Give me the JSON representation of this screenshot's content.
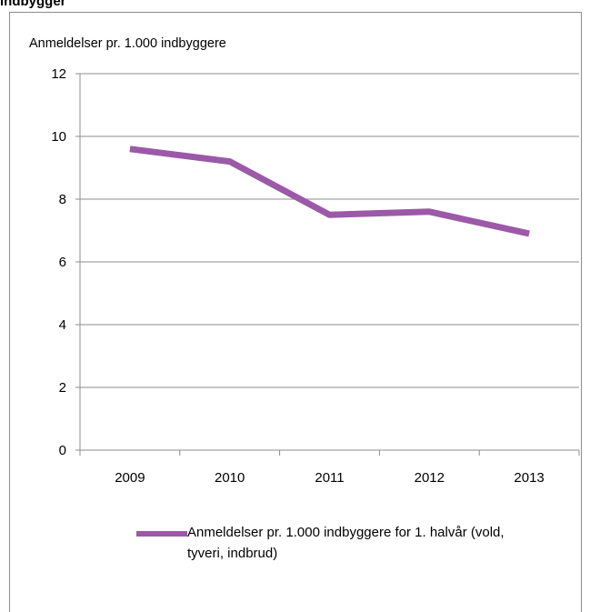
{
  "heading_fragment": "indbygger",
  "chart_data": {
    "type": "line",
    "ylabel": "Anmeldelser pr. 1.000 indbyggere",
    "categories": [
      "2009",
      "2010",
      "2011",
      "2012",
      "2013"
    ],
    "yticks": [
      "0",
      "2",
      "4",
      "6",
      "8",
      "10",
      "12"
    ],
    "ylim": [
      0,
      12
    ],
    "grid": true,
    "legend_position": "bottom",
    "series": [
      {
        "name": "Anmeldelser pr. 1.000 indbyggere for 1. halvår (vold, tyveri, indbrud)",
        "values": [
          9.6,
          9.2,
          7.5,
          7.6,
          6.9
        ],
        "color": "#9b59a8"
      }
    ]
  }
}
